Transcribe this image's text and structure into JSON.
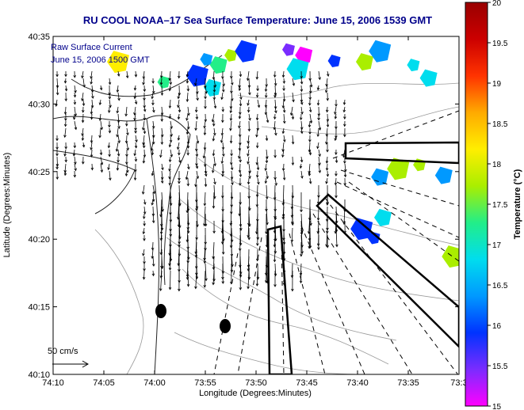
{
  "chart_data": {
    "type": "heatmap",
    "title": "RU COOL  NOAA–17  Sea Surface Temperature:  June 15, 2006 1539 GMT",
    "xlabel": "Longitude (Degrees:Minutes)",
    "ylabel": "Latitude (Degrees:Minutes)",
    "colorbar_label": "Temperature (°C)",
    "x_ticks": [
      "74:10",
      "74:05",
      "74:00",
      "73:55",
      "73:50",
      "73:45",
      "73:40",
      "73:35",
      "73:3"
    ],
    "y_ticks": [
      "40:35",
      "40:30",
      "40:25",
      "40:20",
      "40:15",
      "40:10"
    ],
    "colorbar_ticks": [
      "20",
      "19.5",
      "19",
      "18.5",
      "18",
      "17.5",
      "17",
      "16.5",
      "16",
      "15.5",
      "15"
    ],
    "xlim": [
      -74.1667,
      -73.5
    ],
    "ylim": [
      40.1667,
      40.5833
    ],
    "clim": [
      15,
      20
    ],
    "colormap": [
      "#ff00ff",
      "#7a2cff",
      "#0033ff",
      "#0099ff",
      "#00ddee",
      "#22ee88",
      "#aaee00",
      "#ffee00",
      "#ffaa00",
      "#ff3300",
      "#cc0000",
      "#990000"
    ],
    "annotations": {
      "vector_label": "Raw Surface Current",
      "vector_time": "June 15, 2006 1500 GMT",
      "scale_label": "50 cm/s"
    },
    "sst_patches": [
      {
        "lon": -73.915,
        "lat": 40.555,
        "temp": 16.3
      },
      {
        "lon": -73.895,
        "lat": 40.548,
        "temp": 17.2
      },
      {
        "lon": -73.93,
        "lat": 40.535,
        "temp": 16.0
      },
      {
        "lon": -73.875,
        "lat": 40.56,
        "temp": 17.6
      },
      {
        "lon": -73.905,
        "lat": 40.52,
        "temp": 16.6
      },
      {
        "lon": -73.85,
        "lat": 40.565,
        "temp": 15.9
      },
      {
        "lon": -73.78,
        "lat": 40.567,
        "temp": 15.3
      },
      {
        "lon": -73.755,
        "lat": 40.56,
        "temp": 15.1
      },
      {
        "lon": -73.765,
        "lat": 40.543,
        "temp": 16.8
      },
      {
        "lon": -73.705,
        "lat": 40.553,
        "temp": 16.0
      },
      {
        "lon": -73.655,
        "lat": 40.552,
        "temp": 17.8
      },
      {
        "lon": -73.63,
        "lat": 40.565,
        "temp": 16.3
      },
      {
        "lon": -73.575,
        "lat": 40.548,
        "temp": 16.6
      },
      {
        "lon": -73.55,
        "lat": 40.532,
        "temp": 16.9
      },
      {
        "lon": -74.06,
        "lat": 40.552,
        "temp": 18.3
      },
      {
        "lon": -73.985,
        "lat": 40.527,
        "temp": 17.2
      },
      {
        "lon": -73.63,
        "lat": 40.41,
        "temp": 16.4
      },
      {
        "lon": -73.6,
        "lat": 40.42,
        "temp": 17.5
      },
      {
        "lon": -73.565,
        "lat": 40.425,
        "temp": 17.9
      },
      {
        "lon": -73.525,
        "lat": 40.412,
        "temp": 16.3
      },
      {
        "lon": -73.66,
        "lat": 40.346,
        "temp": 15.8
      },
      {
        "lon": -73.64,
        "lat": 40.335,
        "temp": 16.1
      },
      {
        "lon": -73.625,
        "lat": 40.36,
        "temp": 17.0
      },
      {
        "lon": -73.51,
        "lat": 40.312,
        "temp": 17.9
      }
    ]
  }
}
